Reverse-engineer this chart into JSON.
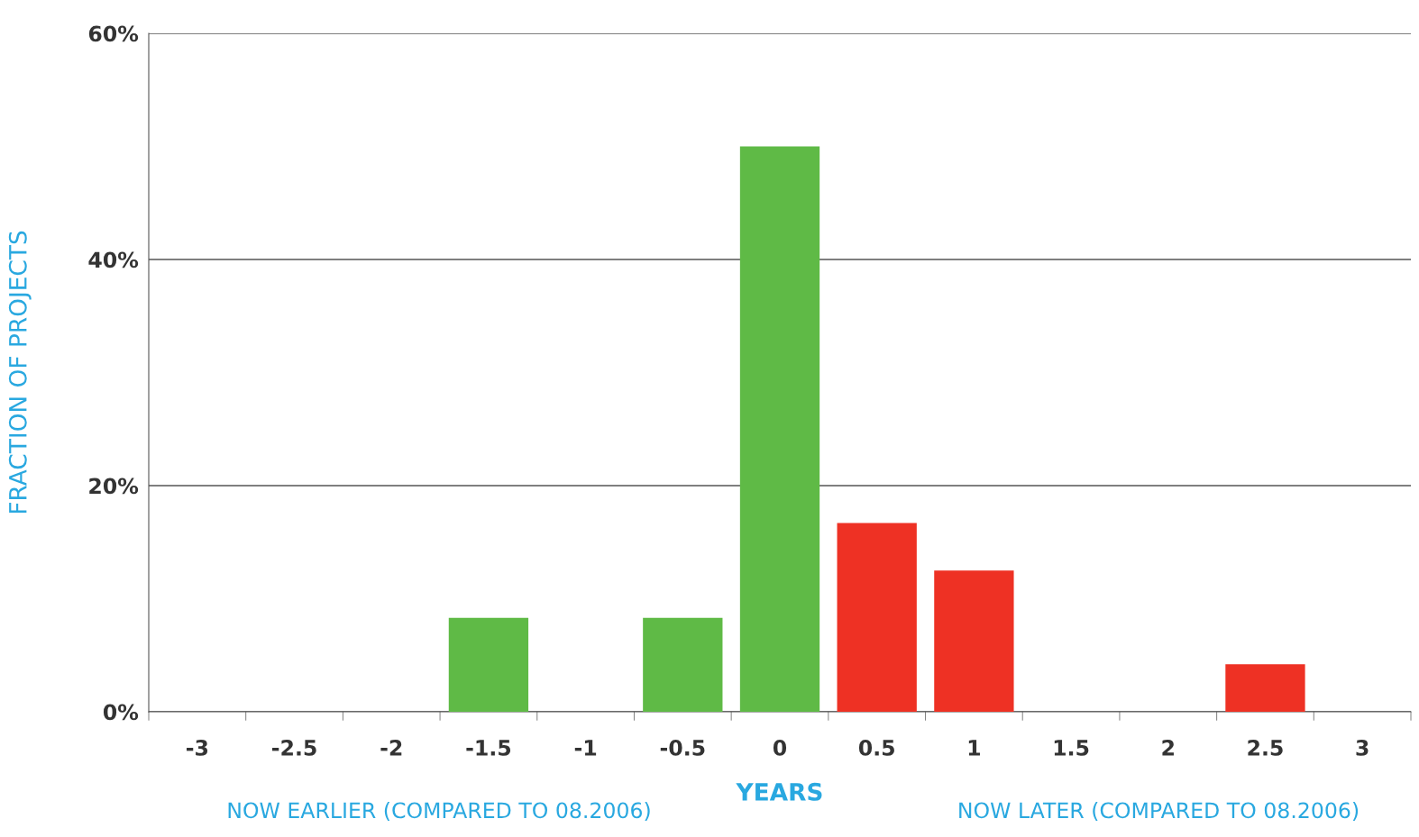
{
  "chart_data": {
    "type": "bar",
    "categories": [
      "-3",
      "-2.5",
      "-2",
      "-1.5",
      "-1",
      "-0.5",
      "0",
      "0.5",
      "1",
      "1.5",
      "2",
      "2.5",
      "3"
    ],
    "values": [
      0,
      0,
      0,
      8.3,
      0,
      8.3,
      50,
      16.7,
      12.5,
      0,
      0,
      4.2,
      0
    ],
    "colors": [
      "#5fba46",
      "#5fba46",
      "#5fba46",
      "#5fba46",
      "#5fba46",
      "#5fba46",
      "#5fba46",
      "#ee3124",
      "#ee3124",
      "#ee3124",
      "#ee3124",
      "#ee3124",
      "#ee3124"
    ],
    "xlabel": "YEARS",
    "ylabel": "FRACTION OF PROJECTS",
    "annotations": [
      "NOW EARLIER (COMPARED TO 08.2006)",
      "NOW LATER (COMPARED TO 08.2006)"
    ],
    "ylim": [
      0,
      60
    ],
    "yticks": [
      {
        "value": 0,
        "label": "0%"
      },
      {
        "value": 20,
        "label": "20%"
      },
      {
        "value": 40,
        "label": "40%"
      },
      {
        "value": 60,
        "label": "60%"
      }
    ],
    "grid": "y"
  }
}
